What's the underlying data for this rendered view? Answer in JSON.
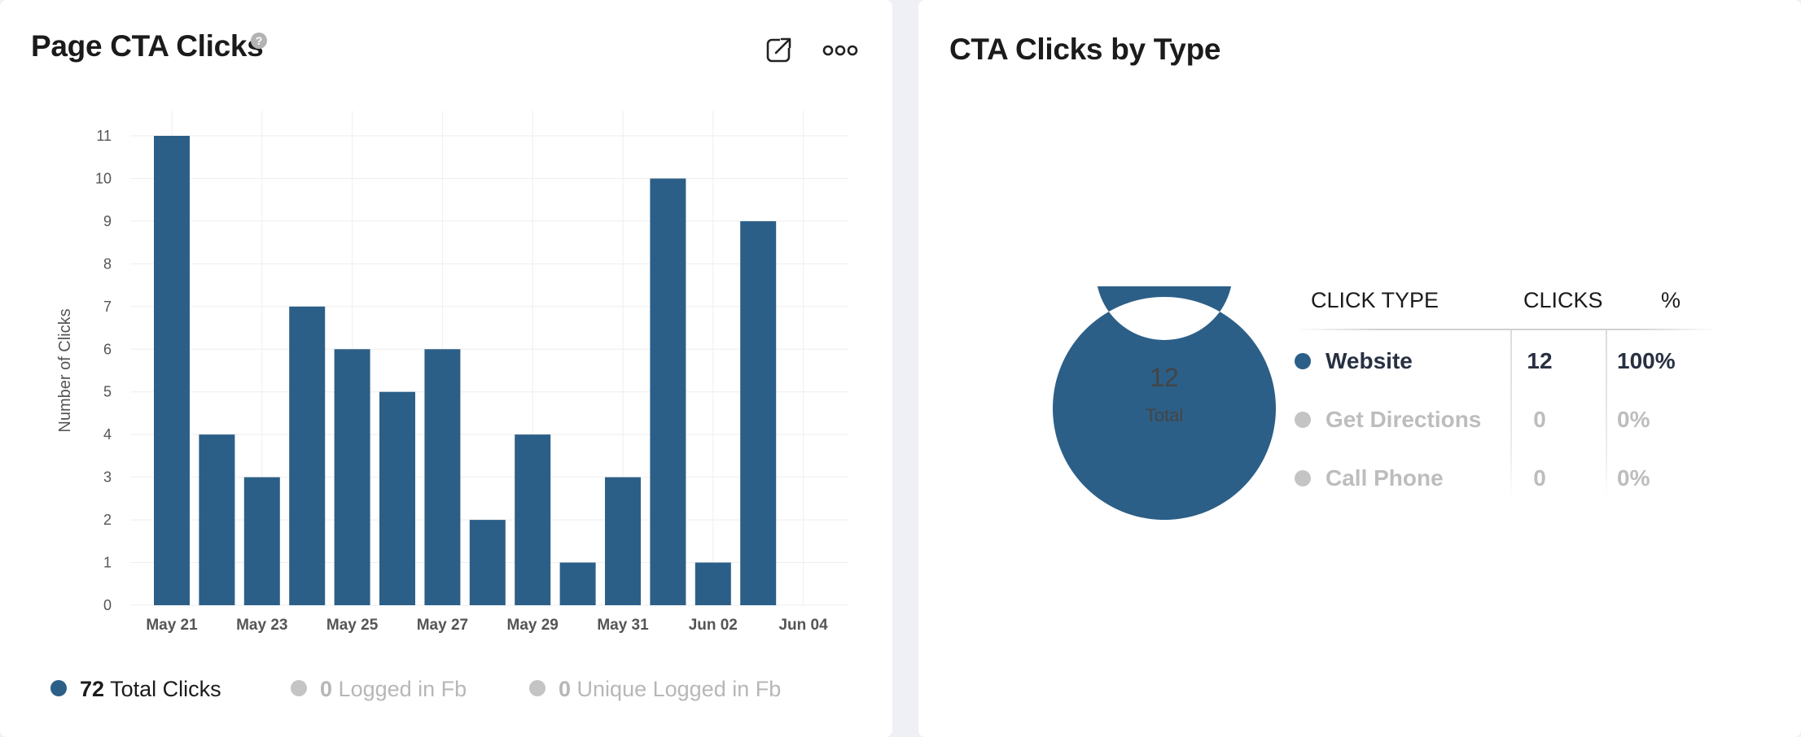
{
  "colors": {
    "primary": "#2c5f87",
    "muted": "#c4c4c4",
    "grid": "#eeeeee",
    "axis_text": "#555555"
  },
  "left_card": {
    "title": "Page CTA Clicks",
    "help_icon": "?",
    "icons": [
      "external-link-icon",
      "more-options-icon"
    ],
    "legend": [
      {
        "value": "72",
        "label": "Total Clicks",
        "state": "active"
      },
      {
        "value": "0",
        "label": "Logged in Fb",
        "state": "muted"
      },
      {
        "value": "0",
        "label": "Unique Logged in Fb",
        "state": "muted"
      }
    ]
  },
  "chart_data": [
    {
      "type": "bar",
      "x": [
        "May 21",
        "May 22",
        "May 23",
        "May 24",
        "May 25",
        "May 26",
        "May 27",
        "May 28",
        "May 29",
        "May 30",
        "May 31",
        "Jun 01",
        "Jun 02",
        "Jun 03"
      ],
      "values": [
        11,
        4,
        3,
        7,
        6,
        5,
        6,
        2,
        4,
        1,
        3,
        10,
        1,
        9
      ],
      "x_tick_labels": [
        "May 21",
        "May 23",
        "May 25",
        "May 27",
        "May 29",
        "May 31",
        "Jun 02",
        "Jun 04"
      ],
      "ylabel": "Number of Clicks",
      "ylim": [
        0,
        11
      ],
      "y_ticks": [
        0,
        1,
        2,
        3,
        4,
        5,
        6,
        7,
        8,
        9,
        10,
        11
      ],
      "grid": true
    },
    {
      "type": "pie",
      "variant": "donut",
      "categories": [
        "Website",
        "Get Directions",
        "Call Phone"
      ],
      "values": [
        12,
        0,
        0
      ],
      "center_value": "12",
      "center_label": "Total"
    }
  ],
  "right_card": {
    "title": "CTA Clicks by Type",
    "table": {
      "headers": {
        "type": "CLICK TYPE",
        "clicks": "CLICKS",
        "pct": "%"
      },
      "rows": [
        {
          "label": "Website",
          "clicks": "12",
          "pct": "100%",
          "state": "primary"
        },
        {
          "label": "Get Directions",
          "clicks": "0",
          "pct": "0%",
          "state": "muted"
        },
        {
          "label": "Call Phone",
          "clicks": "0",
          "pct": "0%",
          "state": "muted"
        }
      ]
    }
  }
}
